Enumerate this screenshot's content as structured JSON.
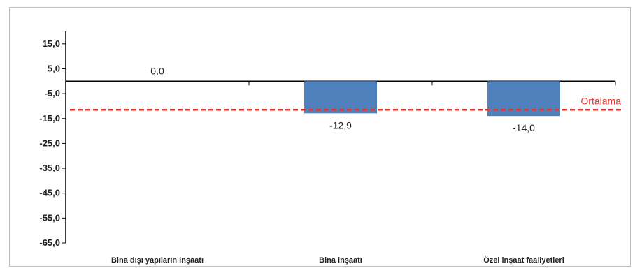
{
  "chart_data": {
    "type": "bar",
    "categories": [
      "Bina dışı yapıların inşaatı",
      "Bina inşaatı",
      "Özel inşaat faaliyetleri"
    ],
    "values": [
      0.0,
      -12.9,
      -14.0
    ],
    "data_labels": [
      "0,0",
      "-12,9",
      "-14,0"
    ],
    "y_ticks": [
      "15,0",
      "5,0",
      "-5,0",
      "-15,0",
      "-25,0",
      "-35,0",
      "-45,0",
      "-55,0",
      "-65,0"
    ],
    "y_tick_values": [
      15,
      5,
      -5,
      -15,
      -25,
      -35,
      -45,
      -55,
      -65
    ],
    "ylim": [
      -65,
      20
    ],
    "reference_line": {
      "label": "Ortalama",
      "value": -11.5,
      "color": "#e8302a"
    },
    "bar_color": "#4f81bd",
    "grid": false,
    "legend": "none"
  }
}
